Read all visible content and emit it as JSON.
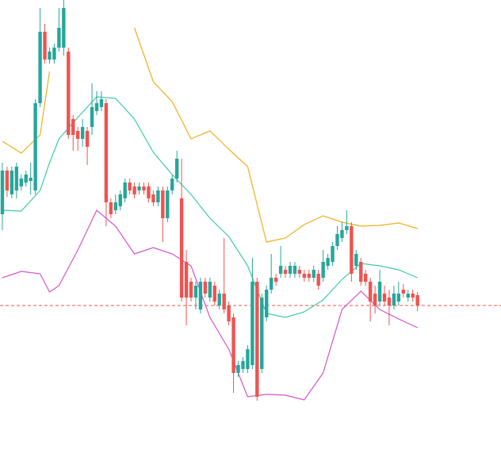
{
  "chart_data": {
    "type": "candlestick",
    "up_color": "#26a69a",
    "down_color": "#ef5350",
    "xlim": [
      -0.5,
      105.7
    ],
    "ylim": [
      0,
      586
    ],
    "open": [
      316,
      371,
      341,
      346,
      351,
      356,
      358,
      346,
      456,
      546,
      511,
      511,
      526,
      526,
      521,
      436,
      421,
      411,
      421,
      426,
      446,
      451,
      456,
      331,
      321,
      326,
      336,
      356,
      351,
      346,
      351,
      351,
      341,
      331,
      346,
      311,
      346,
      361,
      336,
      256,
      231,
      211,
      196,
      231,
      211,
      226,
      201,
      216,
      201,
      186,
      116,
      121,
      121,
      126,
      231,
      121,
      186,
      221,
      236,
      241,
      246,
      241,
      241,
      246,
      241,
      241,
      236,
      241,
      236,
      251,
      256,
      276,
      286,
      296,
      301,
      251,
      256,
      241,
      231,
      216,
      206,
      216,
      211,
      201,
      206,
      221,
      211,
      216,
      214
    ],
    "high": [
      381,
      376,
      376,
      381,
      366,
      371,
      381,
      461,
      576,
      556,
      526,
      531,
      576,
      586,
      526,
      441,
      426,
      436,
      426,
      481,
      471,
      471,
      461,
      336,
      341,
      346,
      361,
      361,
      356,
      356,
      356,
      356,
      346,
      351,
      351,
      351,
      366,
      396,
      386,
      271,
      236,
      231,
      236,
      236,
      236,
      231,
      221,
      286,
      206,
      191,
      131,
      136,
      151,
      261,
      236,
      216,
      226,
      266,
      241,
      276,
      251,
      256,
      256,
      251,
      246,
      246,
      251,
      246,
      271,
      266,
      281,
      301,
      306,
      321,
      306,
      271,
      261,
      246,
      236,
      226,
      246,
      226,
      221,
      226,
      231,
      228,
      221,
      221,
      218
    ],
    "low": [
      296,
      338,
      336,
      336,
      346,
      351,
      341,
      341,
      451,
      506,
      506,
      506,
      521,
      516,
      411,
      396,
      396,
      401,
      378,
      416,
      441,
      446,
      301,
      311,
      316,
      321,
      331,
      341,
      336,
      341,
      341,
      331,
      326,
      326,
      281,
      306,
      341,
      356,
      206,
      176,
      206,
      196,
      191,
      211,
      206,
      201,
      196,
      191,
      176,
      91,
      111,
      116,
      116,
      121,
      81,
      116,
      181,
      216,
      226,
      236,
      236,
      236,
      236,
      236,
      231,
      231,
      231,
      221,
      231,
      246,
      251,
      271,
      281,
      291,
      231,
      246,
      226,
      226,
      181,
      191,
      201,
      201,
      176,
      196,
      201,
      211,
      206,
      206,
      194
    ],
    "close": [
      371,
      346,
      371,
      376,
      361,
      366,
      362,
      456,
      546,
      511,
      521,
      526,
      551,
      576,
      416,
      416,
      411,
      426,
      401,
      451,
      456,
      461,
      331,
      316,
      331,
      341,
      356,
      346,
      341,
      351,
      346,
      336,
      331,
      346,
      311,
      346,
      361,
      386,
      211,
      211,
      211,
      226,
      231,
      216,
      231,
      206,
      216,
      196,
      181,
      116,
      126,
      131,
      146,
      231,
      86,
      211,
      221,
      236,
      231,
      251,
      241,
      251,
      251,
      241,
      236,
      236,
      246,
      226,
      256,
      261,
      276,
      291,
      296,
      301,
      241,
      266,
      231,
      231,
      206,
      201,
      231,
      206,
      201,
      216,
      216,
      216,
      216,
      211,
      201
    ],
    "bands": [
      {
        "color": "#f2ad1f",
        "x": [
          0,
          4,
          8,
          10,
          12,
          28,
          32,
          36,
          40,
          44,
          48,
          52,
          56,
          60,
          64,
          68,
          72,
          76,
          80,
          84,
          88
        ],
        "values": [
          408,
          393,
          416,
          496,
          null,
          551,
          483,
          458,
          411,
          421,
          398,
          376,
          281,
          286,
          303,
          314,
          306,
          301,
          302,
          305,
          298
        ]
      },
      {
        "color": "#3dcca6",
        "x": [
          0,
          4,
          8,
          10,
          12,
          16,
          20,
          24,
          28,
          32,
          36,
          40,
          44,
          48,
          52,
          56,
          60,
          64,
          68,
          72,
          76,
          80,
          84,
          88
        ],
        "values": [
          321,
          320,
          346,
          381,
          411,
          438,
          464,
          462,
          436,
          394,
          366,
          341,
          311,
          288,
          251,
          191,
          186,
          193,
          208,
          234,
          254,
          251,
          246,
          236
        ]
      },
      {
        "color": "#d354c9",
        "x": [
          0,
          4,
          8,
          10,
          12,
          16,
          20,
          24,
          28,
          32,
          36,
          40,
          44,
          48,
          52,
          56,
          60,
          64,
          68,
          72,
          76,
          80,
          84,
          88
        ],
        "values": [
          236,
          244,
          241,
          218,
          226,
          271,
          321,
          301,
          266,
          274,
          266,
          251,
          186,
          146,
          86,
          89,
          88,
          82,
          116,
          196,
          219,
          196,
          184,
          173
        ]
      }
    ],
    "price_line": {
      "value": 201,
      "color": "#ef5350"
    }
  }
}
